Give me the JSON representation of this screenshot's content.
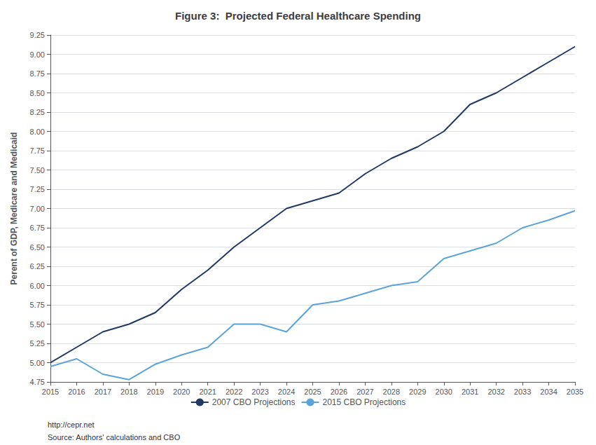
{
  "chart_data": {
    "type": "line",
    "title": "Figure 3:  Projected Federal Healthcare Spending",
    "ylabel": "Perent of GDP, Medicare and Medicaid",
    "x": [
      2015,
      2016,
      2017,
      2018,
      2019,
      2020,
      2021,
      2022,
      2023,
      2024,
      2025,
      2026,
      2027,
      2028,
      2029,
      2030,
      2031,
      2032,
      2033,
      2034,
      2035
    ],
    "series": [
      {
        "name": "2007 CBO Projections",
        "color": "#1F3864",
        "values": [
          5.0,
          5.2,
          5.4,
          5.5,
          5.65,
          5.95,
          6.2,
          6.5,
          6.75,
          7.0,
          7.1,
          7.2,
          7.45,
          7.65,
          7.8,
          8.0,
          8.35,
          8.5,
          8.7,
          8.9,
          9.1
        ]
      },
      {
        "name": "2015 CBO Projections",
        "color": "#5BA3D9",
        "values": [
          4.95,
          5.05,
          4.85,
          4.78,
          4.98,
          5.1,
          5.2,
          5.5,
          5.5,
          5.4,
          5.75,
          5.8,
          5.9,
          6.0,
          6.05,
          6.35,
          6.45,
          6.55,
          6.75,
          6.85,
          6.97
        ]
      }
    ],
    "xlim": [
      2015,
      2035
    ],
    "xticks": [
      2015,
      2016,
      2017,
      2018,
      2019,
      2020,
      2021,
      2022,
      2023,
      2024,
      2025,
      2026,
      2027,
      2028,
      2029,
      2030,
      2031,
      2032,
      2033,
      2034,
      2035
    ],
    "ylim": [
      4.75,
      9.25
    ],
    "yticks": [
      4.75,
      {
        "value": 5.0,
        "label": "5.00"
      },
      5.25,
      {
        "value": 5.5,
        "label": "5.50"
      },
      5.75,
      {
        "value": 6.0,
        "label": "6.00"
      },
      6.25,
      {
        "value": 6.5,
        "label": "6.50"
      },
      6.75,
      {
        "value": 7.0,
        "label": "7.00"
      },
      7.25,
      {
        "value": 7.5,
        "label": "7.50"
      },
      7.75,
      {
        "value": 8.0,
        "label": "8.00"
      },
      8.25,
      {
        "value": 8.5,
        "label": "8.50"
      },
      8.75,
      {
        "value": 9.0,
        "label": "9.00"
      },
      9.25
    ],
    "grid": true,
    "legend": "bottom",
    "annotations": [
      "http://cepr.net",
      "Source: Authors' calculations and CBO"
    ]
  }
}
